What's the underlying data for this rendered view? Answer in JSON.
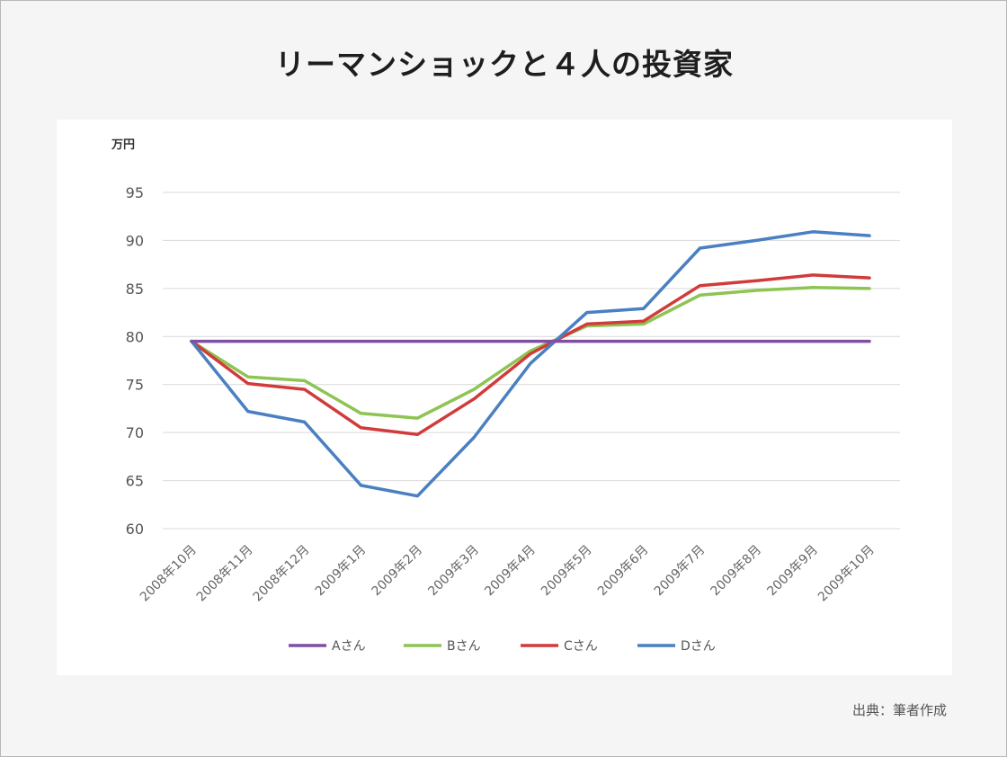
{
  "page": {
    "title": "リーマンショックと４人の投資家",
    "source": "出典：筆者作成"
  },
  "chart_data": {
    "type": "line",
    "title": "リーマンショックと４人の投資家",
    "ylabel": "万円",
    "xlabel": "",
    "ylim": [
      60,
      95
    ],
    "yticks": [
      60,
      65,
      70,
      75,
      80,
      85,
      90,
      95
    ],
    "grid": true,
    "legend_position": "bottom",
    "categories": [
      "2008年10月",
      "2008年11月",
      "2008年12月",
      "2009年1月",
      "2009年2月",
      "2009年3月",
      "2009年4月",
      "2009年5月",
      "2009年6月",
      "2009年7月",
      "2009年8月",
      "2009年9月",
      "2009年10月"
    ],
    "series": [
      {
        "name": "Aさん",
        "color": "#7f4fa3",
        "values": [
          79.5,
          79.5,
          79.5,
          79.5,
          79.5,
          79.5,
          79.5,
          79.5,
          79.5,
          79.5,
          79.5,
          79.5,
          79.5
        ]
      },
      {
        "name": "Bさん",
        "color": "#8dc452",
        "values": [
          79.5,
          75.8,
          75.4,
          72.0,
          71.5,
          74.5,
          78.5,
          81.1,
          81.3,
          84.3,
          84.8,
          85.1,
          85.0
        ]
      },
      {
        "name": "Cさん",
        "color": "#d13b3b",
        "values": [
          79.5,
          75.1,
          74.5,
          70.5,
          69.8,
          73.5,
          78.2,
          81.3,
          81.6,
          85.3,
          85.8,
          86.4,
          86.1
        ]
      },
      {
        "name": "Dさん",
        "color": "#4a7fc1",
        "values": [
          79.5,
          72.2,
          71.1,
          64.5,
          63.4,
          69.5,
          77.2,
          82.5,
          82.9,
          89.2,
          90.0,
          90.9,
          90.5
        ]
      }
    ]
  }
}
